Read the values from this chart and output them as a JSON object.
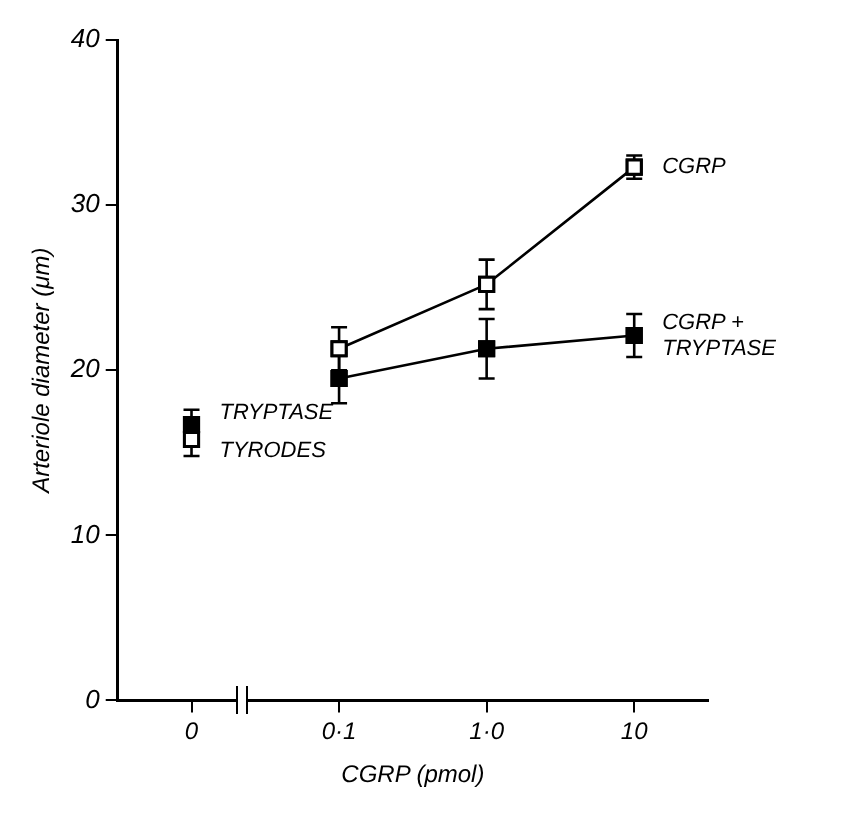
{
  "chart_data": {
    "type": "line",
    "xlabel": "CGRP (pmol)",
    "ylabel": "Arteriole diameter (μm)",
    "categories": [
      "0",
      "0·1",
      "1·0",
      "10"
    ],
    "ylim": [
      0,
      40
    ],
    "yticks": [
      0,
      10,
      20,
      30,
      40
    ],
    "grid": false,
    "legend": false,
    "marker": "square",
    "color": "#000000",
    "series": [
      {
        "name": "TRYPTASE",
        "type": "scatter",
        "color": "#000000",
        "values": [
          16.7,
          null,
          null,
          null
        ],
        "errors": [
          0.9,
          null,
          null,
          null
        ]
      },
      {
        "name": "TYRODES",
        "type": "scatter",
        "color": "#ffffff",
        "values": [
          15.8,
          null,
          null,
          null
        ],
        "errors": [
          1.0,
          null,
          null,
          null
        ]
      },
      {
        "name": "CGRP",
        "color": "#ffffff",
        "values": [
          null,
          21.3,
          25.2,
          32.3
        ],
        "errors": [
          null,
          1.3,
          1.5,
          0.7
        ]
      },
      {
        "name": "CGRP + TRYPTASE",
        "color": "#000000",
        "values": [
          null,
          19.5,
          21.3,
          22.1
        ],
        "errors": [
          null,
          1.5,
          1.8,
          1.3
        ]
      }
    ]
  }
}
